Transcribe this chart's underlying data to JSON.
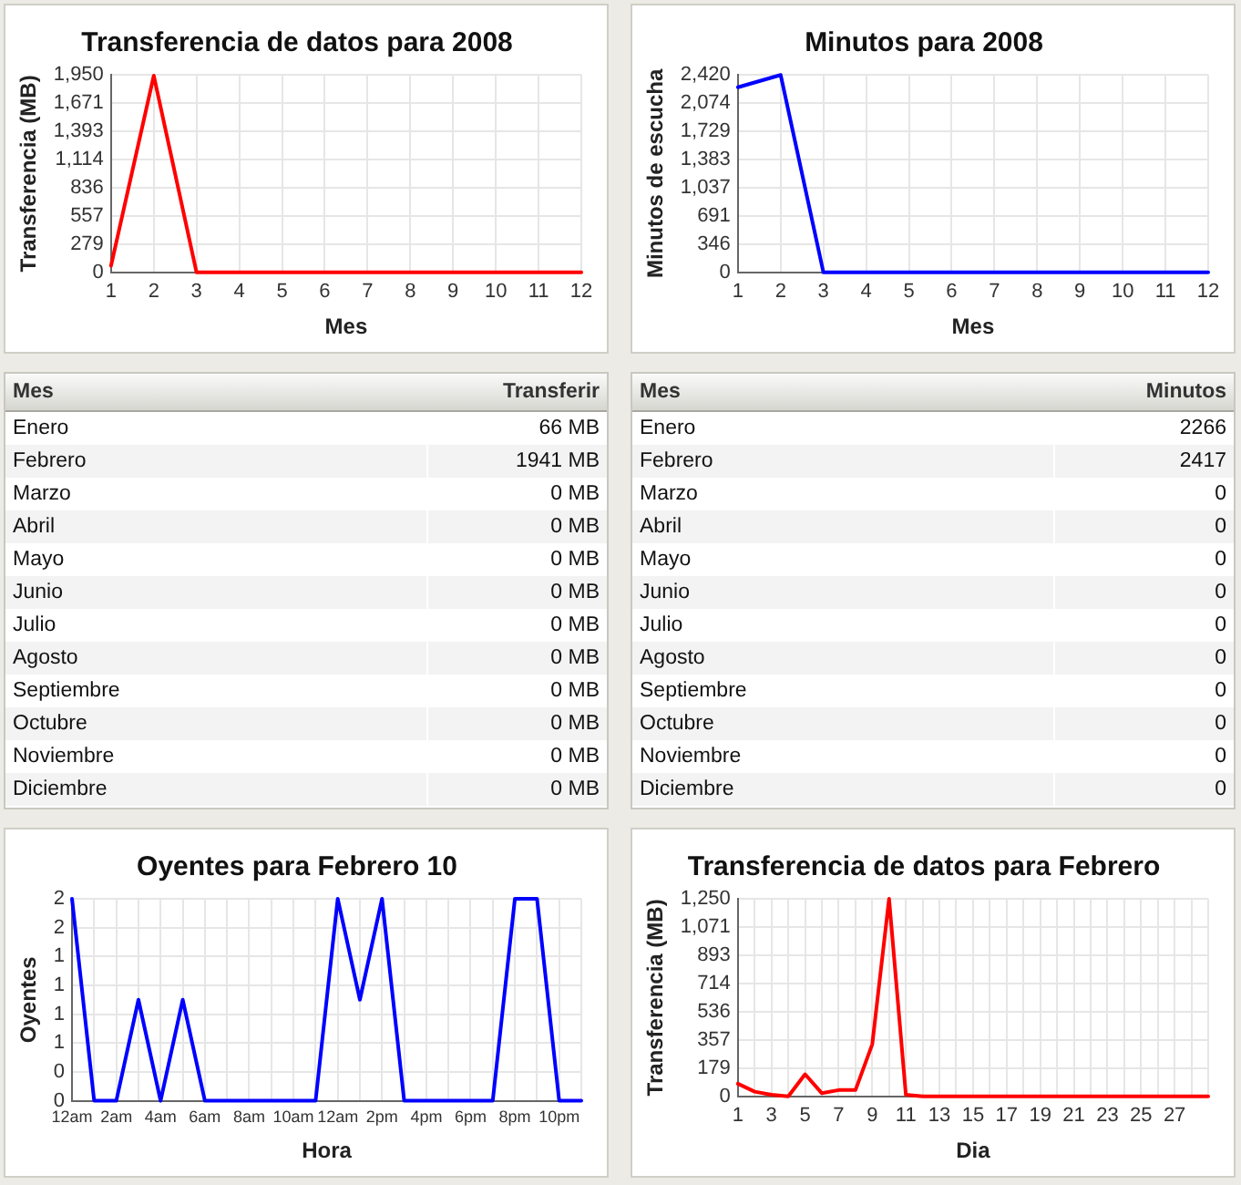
{
  "chart_data": [
    {
      "type": "line",
      "title": "Transferencia de datos para 2008",
      "xlabel": "Mes",
      "ylabel": "Transferencia (MB)",
      "x": [
        1,
        2,
        3,
        4,
        5,
        6,
        7,
        8,
        9,
        10,
        11,
        12
      ],
      "values": [
        66,
        1941,
        0,
        0,
        0,
        0,
        0,
        0,
        0,
        0,
        0,
        0
      ],
      "color": "#ff0000",
      "xlim": [
        1,
        12
      ],
      "xticks": [
        1,
        2,
        3,
        4,
        5,
        6,
        7,
        8,
        9,
        10,
        11,
        12
      ],
      "ylim": [
        0,
        1950
      ],
      "yticks": [
        0,
        279,
        557,
        836,
        {
          "value": 1114,
          "label": "1,114"
        },
        {
          "value": 1393,
          "label": "1,393"
        },
        {
          "value": 1671,
          "label": "1,671"
        },
        {
          "value": 1950,
          "label": "1,950"
        }
      ],
      "grid": true,
      "marker": "none"
    },
    {
      "type": "line",
      "title": "Minutos para 2008",
      "xlabel": "Mes",
      "ylabel": "Minutos de escucha",
      "x": [
        1,
        2,
        3,
        4,
        5,
        6,
        7,
        8,
        9,
        10,
        11,
        12
      ],
      "values": [
        2266,
        2417,
        0,
        0,
        0,
        0,
        0,
        0,
        0,
        0,
        0,
        0
      ],
      "color": "#0000ff",
      "xlim": [
        1,
        12
      ],
      "xticks": [
        1,
        2,
        3,
        4,
        5,
        6,
        7,
        8,
        9,
        10,
        11,
        12
      ],
      "ylim": [
        0,
        2420
      ],
      "yticks": [
        0,
        346,
        691,
        {
          "value": 1037,
          "label": "1,037"
        },
        {
          "value": 1383,
          "label": "1,383"
        },
        {
          "value": 1729,
          "label": "1,729"
        },
        {
          "value": 2074,
          "label": "2,074"
        },
        {
          "value": 2420,
          "label": "2,420"
        }
      ],
      "grid": true,
      "marker": "none"
    },
    {
      "type": "other",
      "xlabel": "Mes",
      "ylabel": "Transferir",
      "categories": [
        "Enero",
        "Febrero",
        "Marzo",
        "Abril",
        "Mayo",
        "Junio",
        "Julio",
        "Agosto",
        "Septiembre",
        "Octubre",
        "Noviembre",
        "Diciembre"
      ],
      "value_labels": [
        "66 MB",
        "1941 MB",
        "0 MB",
        "0 MB",
        "0 MB",
        "0 MB",
        "0 MB",
        "0 MB",
        "0 MB",
        "0 MB",
        "0 MB",
        "0 MB"
      ]
    },
    {
      "type": "other",
      "xlabel": "Mes",
      "ylabel": "Minutos",
      "categories": [
        "Enero",
        "Febrero",
        "Marzo",
        "Abril",
        "Mayo",
        "Junio",
        "Julio",
        "Agosto",
        "Septiembre",
        "Octubre",
        "Noviembre",
        "Diciembre"
      ],
      "values": [
        2266,
        2417,
        0,
        0,
        0,
        0,
        0,
        0,
        0,
        0,
        0,
        0
      ],
      "data_labels": true
    },
    {
      "type": "line",
      "title": "Oyentes para Febrero 10",
      "xlabel": "Hora",
      "ylabel": "Oyentes",
      "x": [
        "--02-10T00:00",
        "--02-10T01:00",
        "--02-10T02:00",
        "--02-10T03:00",
        "--02-10T04:00",
        "--02-10T05:00",
        "--02-10T06:00",
        "--02-10T07:00",
        "--02-10T08:00",
        "--02-10T09:00",
        "--02-10T10:00",
        "--02-10T11:00",
        "--02-10T12:00",
        "--02-10T13:00",
        "--02-10T14:00",
        "--02-10T15:00",
        "--02-10T16:00",
        "--02-10T17:00",
        "--02-10T18:00",
        "--02-10T19:00",
        "--02-10T20:00",
        "--02-10T21:00",
        "--02-10T22:00",
        "--02-10T23:00"
      ],
      "values": [
        2,
        0,
        0,
        1,
        0,
        1,
        0,
        0,
        0,
        0,
        0,
        0,
        2,
        1,
        2,
        0,
        0,
        0,
        0,
        0,
        2,
        2,
        0,
        0
      ],
      "color": "#0000ff",
      "xlim": [
        "--02-10T00:00",
        "--02-10T23:00"
      ],
      "xticks": [
        {
          "value": "--02-10T00:00",
          "label": "12am"
        },
        {
          "value": "--02-10T01:00",
          "label": null
        },
        {
          "value": "--02-10T02:00",
          "label": "2am"
        },
        {
          "value": "--02-10T03:00",
          "label": null
        },
        {
          "value": "--02-10T04:00",
          "label": "4am"
        },
        {
          "value": "--02-10T05:00",
          "label": null
        },
        {
          "value": "--02-10T06:00",
          "label": "6am"
        },
        {
          "value": "--02-10T07:00",
          "label": null
        },
        {
          "value": "--02-10T08:00",
          "label": "8am"
        },
        {
          "value": "--02-10T09:00",
          "label": null
        },
        {
          "value": "--02-10T10:00",
          "label": "10am"
        },
        {
          "value": "--02-10T11:00",
          "label": null
        },
        {
          "value": "--02-10T12:00",
          "label": "12am"
        },
        {
          "value": "--02-10T13:00",
          "label": null
        },
        {
          "value": "--02-10T14:00",
          "label": "2pm"
        },
        {
          "value": "--02-10T15:00",
          "label": null
        },
        {
          "value": "--02-10T16:00",
          "label": "4pm"
        },
        {
          "value": "--02-10T17:00",
          "label": null
        },
        {
          "value": "--02-10T18:00",
          "label": "6pm"
        },
        {
          "value": "--02-10T19:00",
          "label": null
        },
        {
          "value": "--02-10T20:00",
          "label": "8pm"
        },
        {
          "value": "--02-10T21:00",
          "label": null
        },
        {
          "value": "--02-10T22:00",
          "label": "10pm"
        },
        {
          "value": "--02-10T23:00",
          "label": null
        }
      ],
      "ylim": [
        0,
        2
      ],
      "yticks": [
        0,
        {
          "value": 0.286,
          "label": "0"
        },
        {
          "value": 0.571,
          "label": "1"
        },
        {
          "value": 0.857,
          "label": "1"
        },
        {
          "value": 1.143,
          "label": "1"
        },
        {
          "value": 1.429,
          "label": "1"
        },
        {
          "value": 1.714,
          "label": "2"
        },
        2
      ],
      "grid": true,
      "marker": "none"
    },
    {
      "type": "line",
      "title": "Transferencia de datos para Febrero",
      "xlabel": "Dia",
      "ylabel": "Transferencia (MB)",
      "x": [
        1,
        2,
        3,
        4,
        5,
        6,
        7,
        8,
        9,
        10,
        11,
        12,
        13,
        14,
        15,
        16,
        17,
        18,
        19,
        20,
        21,
        22,
        23,
        24,
        25,
        26,
        27,
        28,
        29
      ],
      "values": [
        80,
        30,
        10,
        0,
        140,
        20,
        40,
        40,
        330,
        1250,
        10,
        0,
        0,
        0,
        0,
        0,
        0,
        0,
        0,
        0,
        0,
        0,
        0,
        0,
        0,
        0,
        0,
        0,
        0
      ],
      "color": "#ff0000",
      "xlim": [
        1,
        29
      ],
      "xticks": [
        1,
        {
          "value": 2,
          "label": null
        },
        3,
        {
          "value": 4,
          "label": null
        },
        5,
        {
          "value": 6,
          "label": null
        },
        7,
        {
          "value": 8,
          "label": null
        },
        9,
        {
          "value": 10,
          "label": null
        },
        11,
        {
          "value": 12,
          "label": null
        },
        13,
        {
          "value": 14,
          "label": null
        },
        15,
        {
          "value": 16,
          "label": null
        },
        17,
        {
          "value": 18,
          "label": null
        },
        19,
        {
          "value": 20,
          "label": null
        },
        21,
        {
          "value": 22,
          "label": null
        },
        23,
        {
          "value": 24,
          "label": null
        },
        25,
        {
          "value": 26,
          "label": null
        },
        27,
        {
          "value": 28,
          "label": null
        },
        {
          "value": 29,
          "label": null
        }
      ],
      "ylim": [
        0,
        1250
      ],
      "yticks": [
        0,
        179,
        357,
        536,
        714,
        893,
        {
          "value": 1071,
          "label": "1,071"
        },
        {
          "value": 1250,
          "label": "1,250"
        }
      ],
      "grid": true,
      "marker": "none"
    }
  ]
}
